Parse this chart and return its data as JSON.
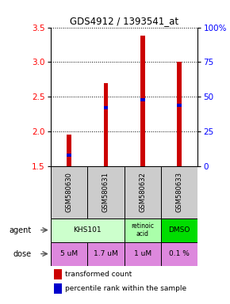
{
  "title": "GDS4912 / 1393541_at",
  "samples": [
    "GSM580630",
    "GSM580631",
    "GSM580632",
    "GSM580633"
  ],
  "bar_values": [
    1.95,
    2.7,
    3.38,
    3.0
  ],
  "percentile_values": [
    0.08,
    0.42,
    0.48,
    0.44
  ],
  "ylim": [
    1.5,
    3.5
  ],
  "yticks_left": [
    1.5,
    2.0,
    2.5,
    3.0,
    3.5
  ],
  "yticks_right": [
    0,
    25,
    50,
    75,
    100
  ],
  "bar_color": "#cc0000",
  "percentile_color": "#0000cc",
  "agent_groups": [
    {
      "cols": [
        0,
        1
      ],
      "text": "KHS101",
      "color": "#ccffcc"
    },
    {
      "cols": [
        2
      ],
      "text": "retinoic\nacid",
      "color": "#aaffaa"
    },
    {
      "cols": [
        3
      ],
      "text": "DMSO",
      "color": "#00dd00"
    }
  ],
  "dose_labels": [
    "5 uM",
    "1.7 uM",
    "1 uM",
    "0.1 %"
  ],
  "dose_color": "#dd88dd",
  "sample_color": "#cccccc",
  "legend_bar_label": "transformed count",
  "legend_pct_label": "percentile rank within the sample"
}
